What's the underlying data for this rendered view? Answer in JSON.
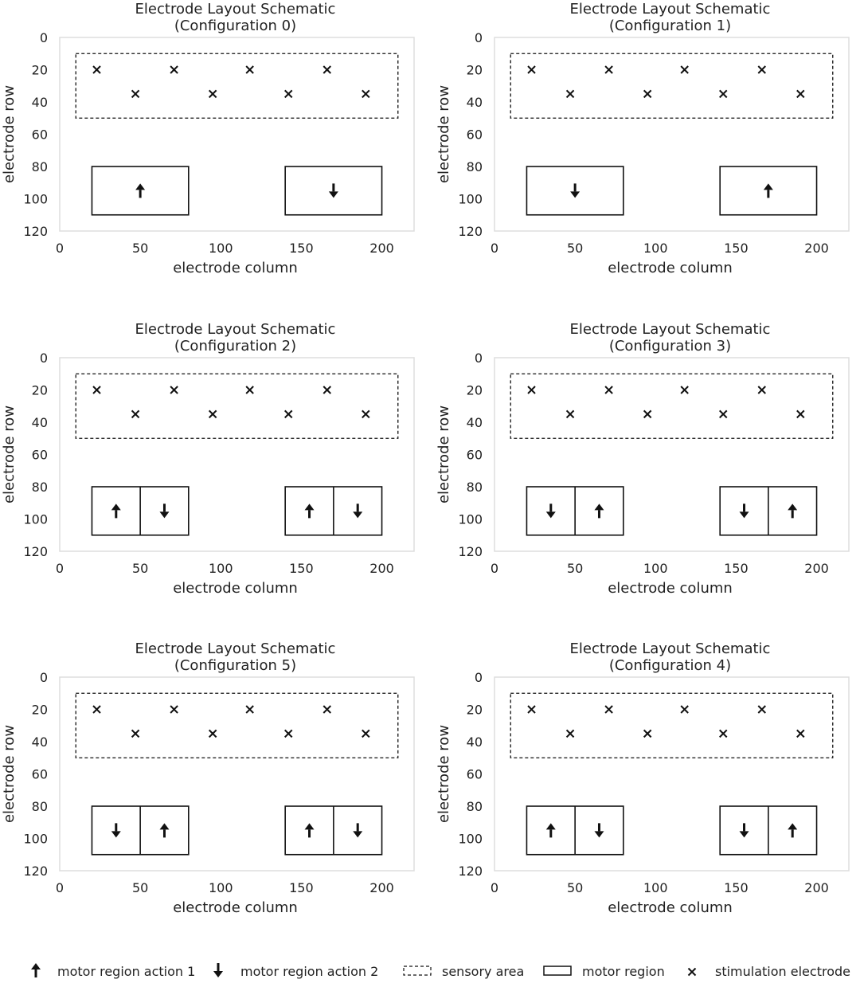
{
  "chart_data": [
    {
      "type": "scatter",
      "title": "Electrode Layout Schematic",
      "subtitle": "(Configuration 0)",
      "xlabel": "electrode column",
      "ylabel": "electrode row",
      "xlim": [
        0,
        220
      ],
      "ylim": [
        120,
        0
      ],
      "xticks": [
        "0",
        "50",
        "100",
        "150",
        "200"
      ],
      "yticks": [
        "0",
        "20",
        "40",
        "60",
        "80",
        "100",
        "120"
      ],
      "sensory_area": {
        "x": [
          10,
          210
        ],
        "y": [
          10,
          50
        ]
      },
      "electrodes": [
        [
          23,
          20
        ],
        [
          71,
          20
        ],
        [
          118,
          20
        ],
        [
          166,
          20
        ],
        [
          47,
          35
        ],
        [
          95,
          35
        ],
        [
          142,
          35
        ],
        [
          190,
          35
        ]
      ],
      "motor_regions": [
        {
          "x": [
            20,
            80
          ],
          "y": [
            80,
            110
          ],
          "cells": [
            "up"
          ]
        },
        {
          "x": [
            140,
            200
          ],
          "y": [
            80,
            110
          ],
          "cells": [
            "down"
          ]
        }
      ]
    },
    {
      "type": "scatter",
      "title": "Electrode Layout Schematic",
      "subtitle": "(Configuration 1)",
      "xlabel": "electrode column",
      "ylabel": "electrode row",
      "xlim": [
        0,
        220
      ],
      "ylim": [
        120,
        0
      ],
      "xticks": [
        "0",
        "50",
        "100",
        "150",
        "200"
      ],
      "yticks": [
        "0",
        "20",
        "40",
        "60",
        "80",
        "100",
        "120"
      ],
      "sensory_area": {
        "x": [
          10,
          210
        ],
        "y": [
          10,
          50
        ]
      },
      "electrodes": [
        [
          23,
          20
        ],
        [
          71,
          20
        ],
        [
          118,
          20
        ],
        [
          166,
          20
        ],
        [
          47,
          35
        ],
        [
          95,
          35
        ],
        [
          142,
          35
        ],
        [
          190,
          35
        ]
      ],
      "motor_regions": [
        {
          "x": [
            20,
            80
          ],
          "y": [
            80,
            110
          ],
          "cells": [
            "down"
          ]
        },
        {
          "x": [
            140,
            200
          ],
          "y": [
            80,
            110
          ],
          "cells": [
            "up"
          ]
        }
      ]
    },
    {
      "type": "scatter",
      "title": "Electrode Layout Schematic",
      "subtitle": "(Configuration 2)",
      "xlabel": "electrode column",
      "ylabel": "electrode row",
      "xlim": [
        0,
        220
      ],
      "ylim": [
        120,
        0
      ],
      "xticks": [
        "0",
        "50",
        "100",
        "150",
        "200"
      ],
      "yticks": [
        "0",
        "20",
        "40",
        "60",
        "80",
        "100",
        "120"
      ],
      "sensory_area": {
        "x": [
          10,
          210
        ],
        "y": [
          10,
          50
        ]
      },
      "electrodes": [
        [
          23,
          20
        ],
        [
          71,
          20
        ],
        [
          118,
          20
        ],
        [
          166,
          20
        ],
        [
          47,
          35
        ],
        [
          95,
          35
        ],
        [
          142,
          35
        ],
        [
          190,
          35
        ]
      ],
      "motor_regions": [
        {
          "x": [
            20,
            80
          ],
          "y": [
            80,
            110
          ],
          "cells": [
            "up",
            "down"
          ]
        },
        {
          "x": [
            140,
            200
          ],
          "y": [
            80,
            110
          ],
          "cells": [
            "up",
            "down"
          ]
        }
      ]
    },
    {
      "type": "scatter",
      "title": "Electrode Layout Schematic",
      "subtitle": "(Configuration 3)",
      "xlabel": "electrode column",
      "ylabel": "electrode row",
      "xlim": [
        0,
        220
      ],
      "ylim": [
        120,
        0
      ],
      "xticks": [
        "0",
        "50",
        "100",
        "150",
        "200"
      ],
      "yticks": [
        "0",
        "20",
        "40",
        "60",
        "80",
        "100",
        "120"
      ],
      "sensory_area": {
        "x": [
          10,
          210
        ],
        "y": [
          10,
          50
        ]
      },
      "electrodes": [
        [
          23,
          20
        ],
        [
          71,
          20
        ],
        [
          118,
          20
        ],
        [
          166,
          20
        ],
        [
          47,
          35
        ],
        [
          95,
          35
        ],
        [
          142,
          35
        ],
        [
          190,
          35
        ]
      ],
      "motor_regions": [
        {
          "x": [
            20,
            80
          ],
          "y": [
            80,
            110
          ],
          "cells": [
            "down",
            "up"
          ]
        },
        {
          "x": [
            140,
            200
          ],
          "y": [
            80,
            110
          ],
          "cells": [
            "down",
            "up"
          ]
        }
      ]
    },
    {
      "type": "scatter",
      "title": "Electrode Layout Schematic",
      "subtitle": "(Configuration 5)",
      "xlabel": "electrode column",
      "ylabel": "electrode row",
      "xlim": [
        0,
        220
      ],
      "ylim": [
        120,
        0
      ],
      "xticks": [
        "0",
        "50",
        "100",
        "150",
        "200"
      ],
      "yticks": [
        "0",
        "20",
        "40",
        "60",
        "80",
        "100",
        "120"
      ],
      "sensory_area": {
        "x": [
          10,
          210
        ],
        "y": [
          10,
          50
        ]
      },
      "electrodes": [
        [
          23,
          20
        ],
        [
          71,
          20
        ],
        [
          118,
          20
        ],
        [
          166,
          20
        ],
        [
          47,
          35
        ],
        [
          95,
          35
        ],
        [
          142,
          35
        ],
        [
          190,
          35
        ]
      ],
      "motor_regions": [
        {
          "x": [
            20,
            80
          ],
          "y": [
            80,
            110
          ],
          "cells": [
            "down",
            "up"
          ]
        },
        {
          "x": [
            140,
            200
          ],
          "y": [
            80,
            110
          ],
          "cells": [
            "up",
            "down"
          ]
        }
      ]
    },
    {
      "type": "scatter",
      "title": "Electrode Layout Schematic",
      "subtitle": "(Configuration 4)",
      "xlabel": "electrode column",
      "ylabel": "electrode row",
      "xlim": [
        0,
        220
      ],
      "ylim": [
        120,
        0
      ],
      "xticks": [
        "0",
        "50",
        "100",
        "150",
        "200"
      ],
      "yticks": [
        "0",
        "20",
        "40",
        "60",
        "80",
        "100",
        "120"
      ],
      "sensory_area": {
        "x": [
          10,
          210
        ],
        "y": [
          10,
          50
        ]
      },
      "electrodes": [
        [
          23,
          20
        ],
        [
          71,
          20
        ],
        [
          118,
          20
        ],
        [
          166,
          20
        ],
        [
          47,
          35
        ],
        [
          95,
          35
        ],
        [
          142,
          35
        ],
        [
          190,
          35
        ]
      ],
      "motor_regions": [
        {
          "x": [
            20,
            80
          ],
          "y": [
            80,
            110
          ],
          "cells": [
            "up",
            "down"
          ]
        },
        {
          "x": [
            140,
            200
          ],
          "y": [
            80,
            110
          ],
          "cells": [
            "down",
            "up"
          ]
        }
      ]
    }
  ],
  "legend": {
    "items": [
      {
        "symbol": "up-arrow",
        "label": "motor region action 1"
      },
      {
        "symbol": "down-arrow",
        "label": "motor region action 2"
      },
      {
        "symbol": "dashed-box",
        "label": "sensory area"
      },
      {
        "symbol": "solid-box",
        "label": "motor region"
      },
      {
        "symbol": "cross",
        "label": "stimulation electrode"
      }
    ]
  },
  "colors": {
    "ink": "#111111",
    "frame": "#dddddd",
    "text": "#222222"
  }
}
